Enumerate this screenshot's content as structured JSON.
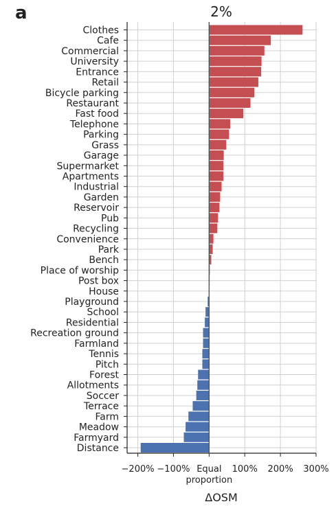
{
  "panel_label": "a",
  "chart_data": {
    "type": "bar",
    "orientation": "horizontal",
    "title": "2%",
    "xlabel": "ΔOSM",
    "xlim": [
      -230,
      300
    ],
    "xticks": [
      {
        "value": -200,
        "label": "−200%"
      },
      {
        "value": -100,
        "label": "−100%"
      },
      {
        "value": 0,
        "label": "Equal"
      },
      {
        "value": 100,
        "label": "100%"
      },
      {
        "value": 200,
        "label": "200%"
      },
      {
        "value": 300,
        "label": "300%"
      }
    ],
    "zero_label_line2": "proportion",
    "grid": true,
    "positive_color": "#c44e52",
    "negative_color": "#4c72b0",
    "categories": [
      "Clothes",
      "Cafe",
      "Commercial",
      "University",
      "Entrance",
      "Retail",
      "Bicycle parking",
      "Restaurant",
      "Fast food",
      "Telephone",
      "Parking",
      "Grass",
      "Garage",
      "Supermarket",
      "Apartments",
      "Industrial",
      "Garden",
      "Reservoir",
      "Pub",
      "Recycling",
      "Convenience",
      "Park",
      "Bench",
      "Place of worship",
      "Post box",
      "House",
      "Playground",
      "School",
      "Residential",
      "Recreation ground",
      "Farmland",
      "Tennis",
      "Pitch",
      "Forest",
      "Allotments",
      "Soccer",
      "Terrace",
      "Farm",
      "Meadow",
      "Farmyard",
      "Distance"
    ],
    "values": [
      262,
      173,
      155,
      147,
      146,
      138,
      127,
      116,
      96,
      59,
      56,
      48,
      41,
      40,
      40,
      35,
      31,
      29,
      25,
      23,
      12,
      10,
      6,
      2,
      1,
      0,
      -4,
      -10,
      -12,
      -17,
      -17,
      -19,
      -19,
      -31,
      -33,
      -36,
      -46,
      -58,
      -66,
      -71,
      -192
    ]
  }
}
